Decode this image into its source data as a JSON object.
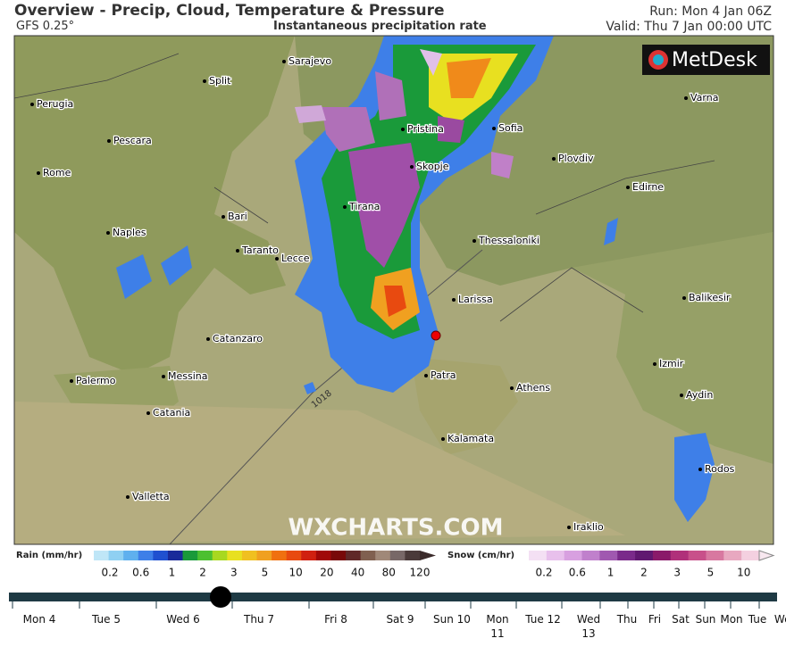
{
  "header": {
    "title": "Overview - Precip, Cloud, Temperature & Pressure",
    "model": "GFS 0.25°",
    "product": "Instantaneous precipitation rate",
    "run": "Run: Mon 4 Jan 06Z",
    "valid": "Valid: Thu 7 Jan 00:00 UTC"
  },
  "map": {
    "logo": "MetDesk",
    "watermark": "WXCHARTS.COM",
    "isobar_label": "1018",
    "cities": [
      "Sarajevo",
      "Split",
      "Perugia",
      "Pescara",
      "Rome",
      "Bari",
      "Naples",
      "Taranto",
      "Lecce",
      "Catanzaro",
      "Palermo",
      "Messina",
      "Catania",
      "Valletta",
      "Pristina",
      "Sofia",
      "Skopje",
      "Tirana",
      "Plovdiv",
      "Varna",
      "Edirne",
      "Thessaloniki",
      "Larissa",
      "Balikesir",
      "Izmir",
      "Aydin",
      "Patra",
      "Athens",
      "Kalamata",
      "Rodos",
      "Iraklio"
    ]
  },
  "legend": {
    "rain_label": "Rain (mm/hr)",
    "rain_ticks": [
      0.2,
      0.6,
      1,
      2,
      3,
      5,
      10,
      20,
      40,
      80,
      120
    ],
    "snow_label": "Snow (cm/hr)",
    "snow_ticks": [
      0.2,
      0.6,
      1,
      2,
      3,
      5,
      10
    ]
  },
  "timeline": {
    "days": [
      "Mon 4",
      "Tue 5",
      "Wed 6",
      "Thu 7",
      "Fri 8",
      "Sat 9",
      "Sun 10",
      "Mon 11",
      "Tue 12",
      "Wed 13",
      "Thu",
      "Fri",
      "Sat",
      "Sun",
      "Mon",
      "Tue",
      "Wed"
    ]
  }
}
